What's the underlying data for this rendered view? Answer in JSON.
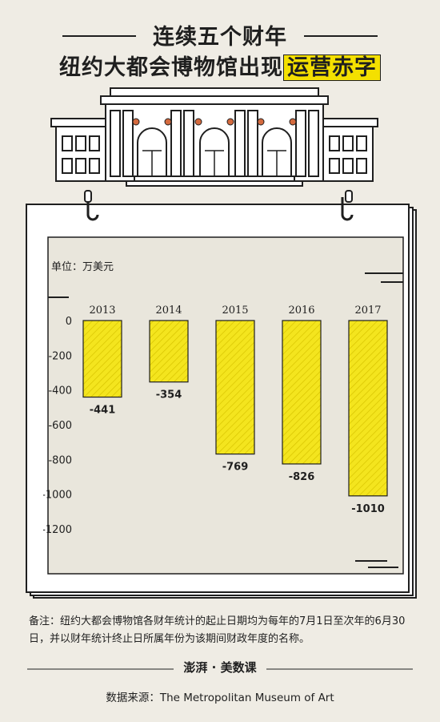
{
  "title": {
    "line1": "连续五个财年",
    "line2_prefix": "纽约大都会博物馆出现",
    "line2_highlight": "运营赤字"
  },
  "unit_label": "单位：万美元",
  "chart_data": {
    "type": "bar",
    "categories": [
      "2013",
      "2014",
      "2015",
      "2016",
      "2017"
    ],
    "values": [
      -441,
      -354,
      -769,
      -826,
      -1010
    ],
    "value_labels": [
      "-441",
      "-354",
      "-769",
      "-826",
      "-1010"
    ],
    "y_ticks": [
      0,
      -200,
      -400,
      -600,
      -800,
      -1000,
      -1200
    ],
    "ylim": [
      -1200,
      0
    ],
    "grid": false,
    "bar_color": "#f4e51e",
    "legend": "none"
  },
  "note": "备注：纽约大都会博物馆各财年统计的起止日期均为每年的7月1日至次年的6月30日，并以财年统计终止日所属年份为该期间财政年度的名称。",
  "logo": {
    "brand": "澎湃",
    "name": "美数课"
  },
  "source": "数据来源：The Metropolitan Museum of Art",
  "colors": {
    "background": "#efece4",
    "highlight": "#f4e000",
    "ink": "#1f1f1f"
  }
}
